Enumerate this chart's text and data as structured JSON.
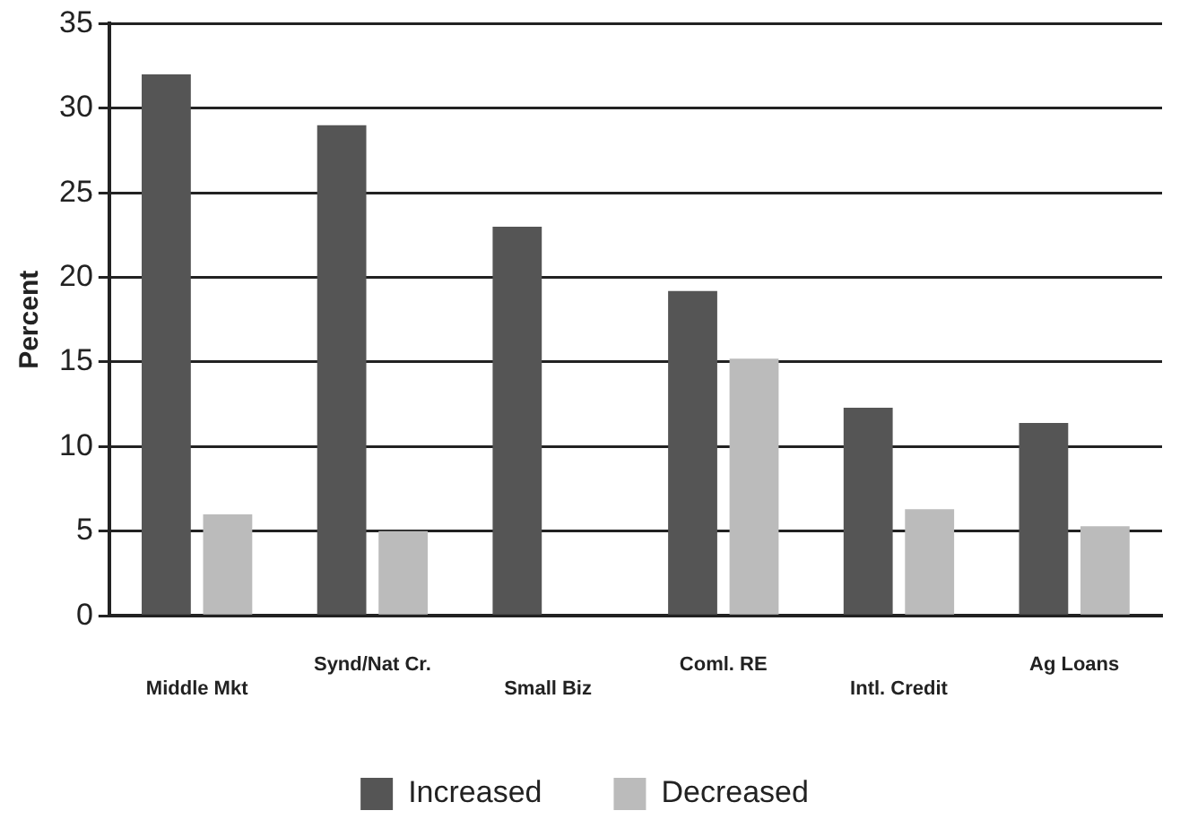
{
  "chart_data": {
    "type": "bar",
    "ylabel": "Percent",
    "categories": [
      "Middle Mkt",
      "Synd/Nat Cr.",
      "Small Biz",
      "Coml. RE",
      "Intl. Credit",
      "Ag Loans"
    ],
    "series": [
      {
        "name": "Increased",
        "color": "#555555",
        "values": [
          32,
          29,
          23,
          19.2,
          12.3,
          11.4
        ]
      },
      {
        "name": "Decreased",
        "color": "#bbbbbb",
        "values": [
          6,
          5,
          0,
          15.2,
          6.3,
          5.3
        ]
      }
    ],
    "ylim": [
      0,
      35
    ],
    "yticks": [
      0,
      5,
      10,
      15,
      20,
      25,
      30,
      35
    ],
    "grid": "y",
    "legend": "bottom"
  }
}
